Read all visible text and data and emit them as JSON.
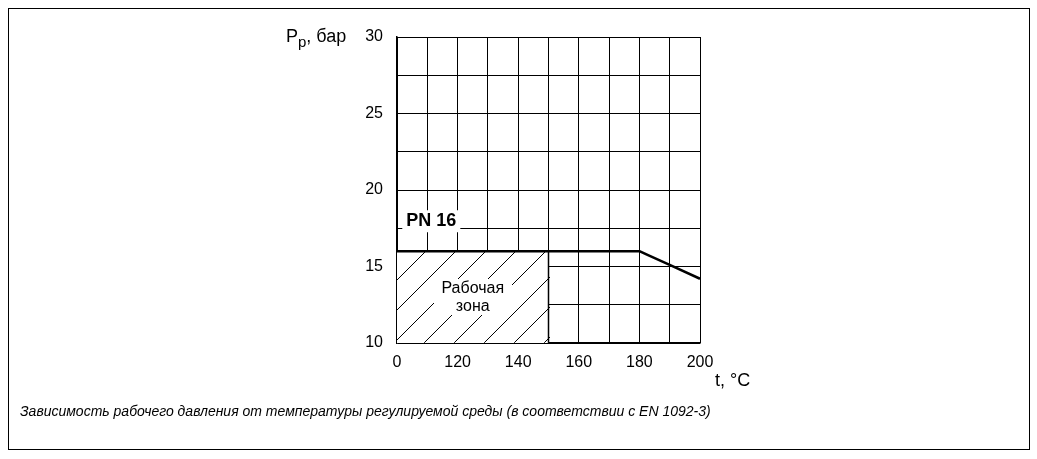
{
  "chart_data": {
    "type": "line",
    "xlabel": "t, °C",
    "ylabel": "P$_{p}$, бар",
    "categories": [
      "0",
      null,
      "120",
      null,
      "140",
      null,
      "160",
      null,
      "180",
      null,
      "200"
    ],
    "series": [
      {
        "name": "PN 16",
        "type": "line",
        "color": "#000000",
        "values": [
          16,
          16,
          16,
          16,
          16,
          16,
          16,
          16,
          16,
          15.1,
          14.2
        ]
      },
      {
        "name": "Рабочая зона",
        "type": "area",
        "color": "#ffffff",
        "values": [
          16,
          16,
          16,
          16,
          16,
          16,
          null,
          null,
          null,
          null,
          null
        ]
      }
    ],
    "ylim": [
      10,
      30
    ],
    "yticks": [
      10,
      {
        "value": 12.5,
        "label": null
      },
      15,
      {
        "value": 17.5,
        "label": null
      },
      20,
      {
        "value": 22.5,
        "label": null
      },
      25,
      {
        "value": 27.5,
        "label": null
      },
      30
    ],
    "grid": true,
    "legend": false,
    "annotations": [
      "Зависимость рабочего давления от температуры регулируемой среды (в соответствии с EN 1092-3)"
    ]
  }
}
